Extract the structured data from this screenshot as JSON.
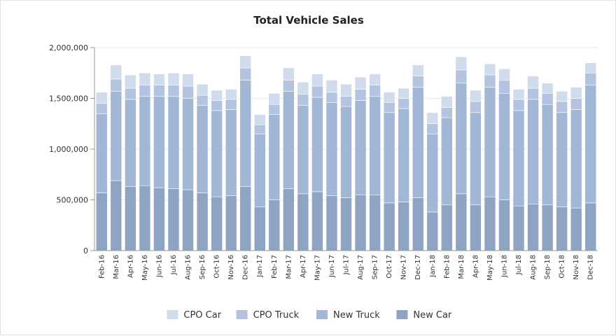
{
  "chart_data": {
    "type": "bar",
    "stacked": true,
    "title": "Total Vehicle Sales",
    "xlabel": "",
    "ylabel": "",
    "ylim": [
      0,
      2000000
    ],
    "yticks": [
      0,
      500000,
      1000000,
      1500000,
      2000000
    ],
    "ytick_labels": [
      "0",
      "500,000",
      "1,000,000",
      "1,500,000",
      "2,000,000"
    ],
    "grid": true,
    "legend_position": "bottom",
    "categories": [
      "Feb-16",
      "Mar-16",
      "Apr-16",
      "May-16",
      "Jun-16",
      "Jul-16",
      "Aug-16",
      "Sep-16",
      "Oct-16",
      "Nov-16",
      "Dec-16",
      "Jan-17",
      "Feb-17",
      "Mar-17",
      "Apr-17",
      "May-17",
      "Jun-17",
      "Jul-17",
      "Aug-17",
      "Sep-17",
      "Oct-17",
      "Nov-17",
      "Dec-17",
      "Jan-18",
      "Feb-18",
      "Mar-18",
      "Apr-18",
      "May-18",
      "Jun-18",
      "Jul-18",
      "Aug-18",
      "Sep-18",
      "Oct-18",
      "Nov-18",
      "Dec-18"
    ],
    "series": [
      {
        "name": "New Car",
        "color": "#8fa4c2",
        "values": [
          570000,
          690000,
          630000,
          640000,
          620000,
          610000,
          600000,
          570000,
          530000,
          540000,
          630000,
          430000,
          500000,
          610000,
          560000,
          580000,
          540000,
          520000,
          550000,
          550000,
          470000,
          480000,
          520000,
          380000,
          450000,
          560000,
          450000,
          530000,
          500000,
          440000,
          460000,
          450000,
          430000,
          420000,
          470000
        ]
      },
      {
        "name": "New Truck",
        "color": "#a2b6d6",
        "values": [
          780000,
          880000,
          860000,
          880000,
          900000,
          910000,
          900000,
          860000,
          850000,
          850000,
          1050000,
          720000,
          840000,
          960000,
          870000,
          930000,
          920000,
          900000,
          930000,
          970000,
          890000,
          920000,
          1090000,
          770000,
          860000,
          1090000,
          910000,
          1080000,
          1050000,
          940000,
          1030000,
          990000,
          930000,
          970000,
          1160000
        ]
      },
      {
        "name": "CPO Truck",
        "color": "#b4c3e0",
        "values": [
          100000,
          120000,
          110000,
          110000,
          110000,
          110000,
          120000,
          100000,
          100000,
          100000,
          120000,
          90000,
          100000,
          110000,
          110000,
          110000,
          100000,
          100000,
          110000,
          110000,
          100000,
          100000,
          110000,
          100000,
          100000,
          130000,
          110000,
          120000,
          130000,
          110000,
          110000,
          110000,
          110000,
          110000,
          120000
        ]
      },
      {
        "name": "CPO Car",
        "color": "#d0dbec",
        "values": [
          110000,
          140000,
          130000,
          120000,
          110000,
          120000,
          120000,
          110000,
          100000,
          100000,
          120000,
          100000,
          110000,
          120000,
          120000,
          120000,
          120000,
          120000,
          120000,
          110000,
          100000,
          100000,
          110000,
          110000,
          110000,
          130000,
          110000,
          110000,
          110000,
          100000,
          120000,
          100000,
          100000,
          110000,
          100000
        ]
      }
    ],
    "legend": [
      "CPO Car",
      "CPO Truck",
      "New Truck",
      "New Car"
    ]
  }
}
